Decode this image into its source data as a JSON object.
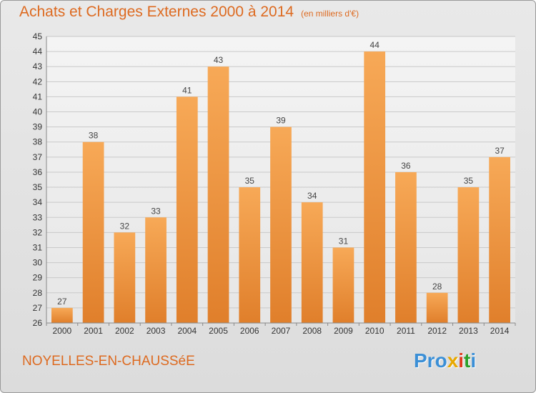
{
  "chart_title": "Achats et Charges Externes 2000 à 2014",
  "chart_unit": "(en milliers d'€)",
  "town": "NOYELLES-EN-CHAUSSéE",
  "logo": {
    "part1": "Pro",
    "x": "x",
    "i1": "i",
    "t": "t",
    "i2": "i"
  },
  "colors": {
    "bar_light": "#f7a957",
    "bar_dark": "#e07f2b",
    "accent": "#dd6a20"
  },
  "chart_data": {
    "type": "bar",
    "title": "Achats et Charges Externes 2000 à 2014",
    "subtitle": "(en milliers d'€)",
    "categories": [
      "2000",
      "2001",
      "2002",
      "2003",
      "2004",
      "2005",
      "2006",
      "2007",
      "2008",
      "2009",
      "2010",
      "2011",
      "2012",
      "2013",
      "2014"
    ],
    "values": [
      27,
      38,
      32,
      33,
      41,
      43,
      35,
      39,
      34,
      31,
      44,
      36,
      28,
      35,
      37
    ],
    "ylim": [
      26,
      45
    ],
    "yticks": [
      26,
      27,
      28,
      29,
      30,
      31,
      32,
      33,
      34,
      35,
      36,
      37,
      38,
      39,
      40,
      41,
      42,
      43,
      44,
      45
    ],
    "grid": true,
    "data_labels": true
  }
}
